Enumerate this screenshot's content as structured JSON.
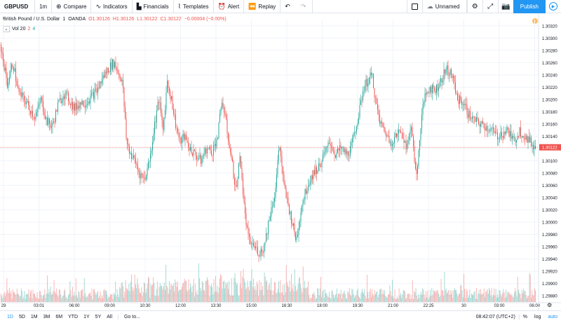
{
  "toolbar": {
    "symbol": "GBPUSD",
    "interval": "1m",
    "compare": "Compare",
    "indicators": "Indicators",
    "financials": "Financials",
    "templates": "Templates",
    "alert": "Alert",
    "replay": "Replay",
    "layout_name": "Unnamed",
    "publish": "Publish"
  },
  "legend": {
    "title": "British Pound / U.S. Dollar",
    "interval": "1",
    "exchange": "OANDA",
    "open": "O1.30126",
    "high": "H1.30126",
    "low": "L1.30122",
    "close": "C1.30122",
    "change": "−0.00004 (−0.00%)"
  },
  "volume_legend": {
    "label": "Vol 20",
    "v1": "2",
    "v2": "4"
  },
  "chart_data": {
    "type": "candlestick",
    "price_axis": {
      "ticks": [
        "1.30320",
        "1.30300",
        "1.30280",
        "1.30260",
        "1.30240",
        "1.30220",
        "1.30200",
        "1.30180",
        "1.30160",
        "1.30140",
        "1.30120",
        "1.30100",
        "1.30080",
        "1.30060",
        "1.30040",
        "1.30020",
        "1.30000",
        "1.29980",
        "1.29960",
        "1.29940",
        "1.29920",
        "1.29900",
        "1.29880"
      ],
      "ylim": [
        1.2987,
        1.3033
      ],
      "last_price": "1.30122"
    },
    "time_axis": {
      "ticks": [
        "29",
        "03:01",
        "06:00",
        "09:00",
        "10:30",
        "12:00",
        "13:30",
        "15:00",
        "16:30",
        "18:00",
        "19:30",
        "21:00",
        "22:25",
        "30",
        "03:00",
        "06:00"
      ]
    },
    "price_path": [
      [
        0,
        1.3029
      ],
      [
        10,
        1.30225
      ],
      [
        18,
        1.3026
      ],
      [
        26,
        1.3021
      ],
      [
        34,
        1.302
      ],
      [
        42,
        1.30185
      ],
      [
        50,
        1.3017
      ],
      [
        58,
        1.302
      ],
      [
        66,
        1.30165
      ],
      [
        74,
        1.30155
      ],
      [
        82,
        1.3019
      ],
      [
        90,
        1.3021
      ],
      [
        98,
        1.302
      ],
      [
        106,
        1.30185
      ],
      [
        114,
        1.30195
      ],
      [
        122,
        1.30195
      ],
      [
        130,
        1.30205
      ],
      [
        138,
        1.30215
      ],
      [
        146,
        1.30235
      ],
      [
        154,
        1.3025
      ],
      [
        162,
        1.3026
      ],
      [
        168,
        1.30245
      ],
      [
        174,
        1.3023
      ],
      [
        180,
        1.3013
      ],
      [
        186,
        1.3011
      ],
      [
        192,
        1.301
      ],
      [
        198,
        1.3008
      ],
      [
        206,
        1.3007
      ],
      [
        214,
        1.3011
      ],
      [
        220,
        1.3016
      ],
      [
        226,
        1.302
      ],
      [
        232,
        1.3015
      ],
      [
        238,
        1.3023
      ],
      [
        244,
        1.302
      ],
      [
        250,
        1.3016
      ],
      [
        256,
        1.3013
      ],
      [
        262,
        1.3014
      ],
      [
        270,
        1.3012
      ],
      [
        278,
        1.3011
      ],
      [
        286,
        1.301
      ],
      [
        294,
        1.3012
      ],
      [
        302,
        1.30115
      ],
      [
        310,
        1.3014
      ],
      [
        316,
        1.302
      ],
      [
        322,
        1.3016
      ],
      [
        330,
        1.301
      ],
      [
        336,
        1.3005
      ],
      [
        342,
        1.3011
      ],
      [
        348,
        1.3002
      ],
      [
        354,
        1.2997
      ],
      [
        362,
        1.2996
      ],
      [
        370,
        1.2995
      ],
      [
        376,
        1.2996
      ],
      [
        384,
        1.3001
      ],
      [
        392,
        1.3005
      ],
      [
        398,
        1.3013
      ],
      [
        404,
        1.3006
      ],
      [
        410,
        1.3003
      ],
      [
        416,
        1.3
      ],
      [
        422,
        1.2997
      ],
      [
        430,
        1.3003
      ],
      [
        438,
        1.3006
      ],
      [
        446,
        1.3008
      ],
      [
        454,
        1.3009
      ],
      [
        462,
        1.3011
      ],
      [
        470,
        1.3013
      ],
      [
        478,
        1.3011
      ],
      [
        486,
        1.3012
      ],
      [
        494,
        1.3011
      ],
      [
        500,
        1.3012
      ],
      [
        506,
        1.3015
      ],
      [
        512,
        1.3018
      ],
      [
        518,
        1.3022
      ],
      [
        524,
        1.3023
      ],
      [
        530,
        1.3024
      ],
      [
        536,
        1.3019
      ],
      [
        542,
        1.3016
      ],
      [
        548,
        1.3015
      ],
      [
        556,
        1.3013
      ],
      [
        564,
        1.3014
      ],
      [
        572,
        1.3015
      ],
      [
        580,
        1.3012
      ],
      [
        586,
        1.3016
      ],
      [
        590,
        1.3011
      ],
      [
        594,
        1.3007
      ],
      [
        598,
        1.3014
      ],
      [
        604,
        1.302
      ],
      [
        612,
        1.3022
      ],
      [
        620,
        1.30215
      ],
      [
        628,
        1.3023
      ],
      [
        636,
        1.3025
      ],
      [
        644,
        1.3024
      ],
      [
        652,
        1.302
      ],
      [
        660,
        1.30195
      ],
      [
        668,
        1.30175
      ],
      [
        676,
        1.30165
      ],
      [
        684,
        1.3016
      ],
      [
        692,
        1.30155
      ],
      [
        700,
        1.3015
      ],
      [
        708,
        1.3014
      ],
      [
        716,
        1.30145
      ],
      [
        724,
        1.3015
      ],
      [
        732,
        1.3013
      ],
      [
        740,
        1.3015
      ],
      [
        748,
        1.3014
      ],
      [
        756,
        1.3013
      ],
      [
        762,
        1.30122
      ]
    ]
  },
  "bottombar": {
    "ranges": [
      "1D",
      "5D",
      "1M",
      "3M",
      "6M",
      "YTD",
      "1Y",
      "5Y",
      "All"
    ],
    "goto": "Go to...",
    "time": "08:42:07 (UTC+2)",
    "percent": "%",
    "log": "log",
    "auto": "auto"
  },
  "colors": {
    "up": "#26a69a",
    "down": "#ef5350",
    "accent": "#2196f3",
    "grid": "#f0f3fa"
  },
  "icons": {
    "compare": "plus-circle-icon",
    "indicators": "indicators-icon",
    "financials": "financials-icon",
    "templates": "templates-icon",
    "alert": "alarm-clock-icon",
    "replay": "replay-icon",
    "undo": "undo-icon",
    "redo": "redo-icon",
    "cloud": "cloud-icon",
    "settings": "gear-icon",
    "fullscreen": "fullscreen-icon",
    "snapshot": "camera-icon",
    "play": "play-icon"
  }
}
